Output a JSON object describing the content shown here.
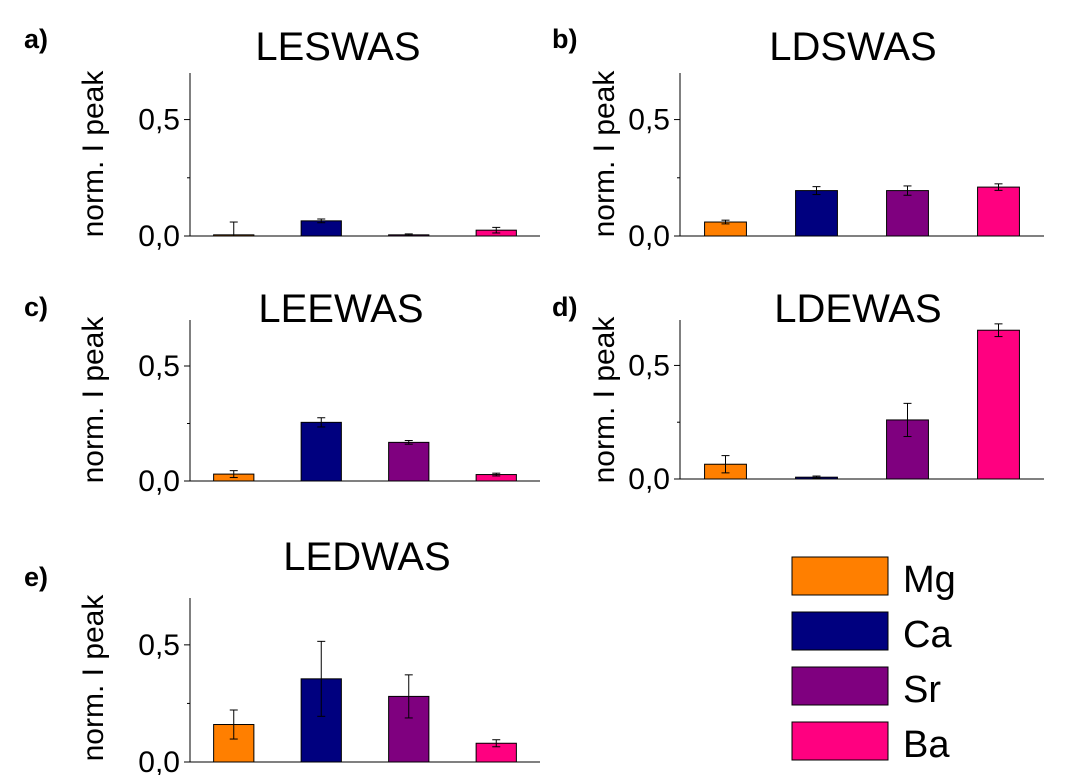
{
  "colors": {
    "Mg": "#ff7f00",
    "Ca": "#00007f",
    "Sr": "#7f007f",
    "Ba": "#ff0080"
  },
  "chart_data": [
    {
      "type": "bar",
      "panel": "a)",
      "title": "LESWAS",
      "ylabel": "norm. I peak",
      "categories": [
        "Mg",
        "Ca",
        "Sr",
        "Ba"
      ],
      "values": [
        0.005,
        0.065,
        0.005,
        0.025
      ],
      "errors": [
        0.055,
        0.008,
        0.004,
        0.012
      ],
      "ylim": [
        0,
        0.7
      ],
      "yticks": [
        "0,0",
        "0,5"
      ]
    },
    {
      "type": "bar",
      "panel": "b)",
      "title": "LDSWAS",
      "ylabel": "norm. I peak",
      "categories": [
        "Mg",
        "Ca",
        "Sr",
        "Ba"
      ],
      "values": [
        0.06,
        0.195,
        0.195,
        0.21
      ],
      "errors": [
        0.008,
        0.017,
        0.02,
        0.014
      ],
      "ylim": [
        0,
        0.7
      ],
      "yticks": [
        "0,0",
        "0,5"
      ]
    },
    {
      "type": "bar",
      "panel": "c)",
      "title": "LEEWAS",
      "ylabel": "norm. I peak",
      "categories": [
        "Mg",
        "Ca",
        "Sr",
        "Ba"
      ],
      "values": [
        0.03,
        0.255,
        0.168,
        0.028
      ],
      "errors": [
        0.015,
        0.02,
        0.008,
        0.006
      ],
      "ylim": [
        0,
        0.7
      ],
      "yticks": [
        "0,0",
        "0,5"
      ]
    },
    {
      "type": "bar",
      "panel": "d)",
      "title": "LDEWAS",
      "ylabel": "norm. I peak",
      "categories": [
        "Mg",
        "Ca",
        "Sr",
        "Ba"
      ],
      "values": [
        0.065,
        0.008,
        0.26,
        0.655
      ],
      "errors": [
        0.038,
        0.005,
        0.073,
        0.028
      ],
      "ylim": [
        0,
        0.7
      ],
      "yticks": [
        "0,0",
        "0,5"
      ]
    },
    {
      "type": "bar",
      "panel": "e)",
      "title": "LEDWAS",
      "ylabel": "norm. I peak",
      "categories": [
        "Mg",
        "Ca",
        "Sr",
        "Ba"
      ],
      "values": [
        0.16,
        0.355,
        0.28,
        0.08
      ],
      "errors": [
        0.062,
        0.16,
        0.092,
        0.015
      ],
      "ylim": [
        0,
        0.7
      ],
      "yticks": [
        "0,0",
        "0,5"
      ]
    }
  ],
  "legend": [
    {
      "label": "Mg",
      "color": "#ff7f00"
    },
    {
      "label": "Ca",
      "color": "#00007f"
    },
    {
      "label": "Sr",
      "color": "#7f007f"
    },
    {
      "label": "Ba",
      "color": "#ff0080"
    }
  ]
}
